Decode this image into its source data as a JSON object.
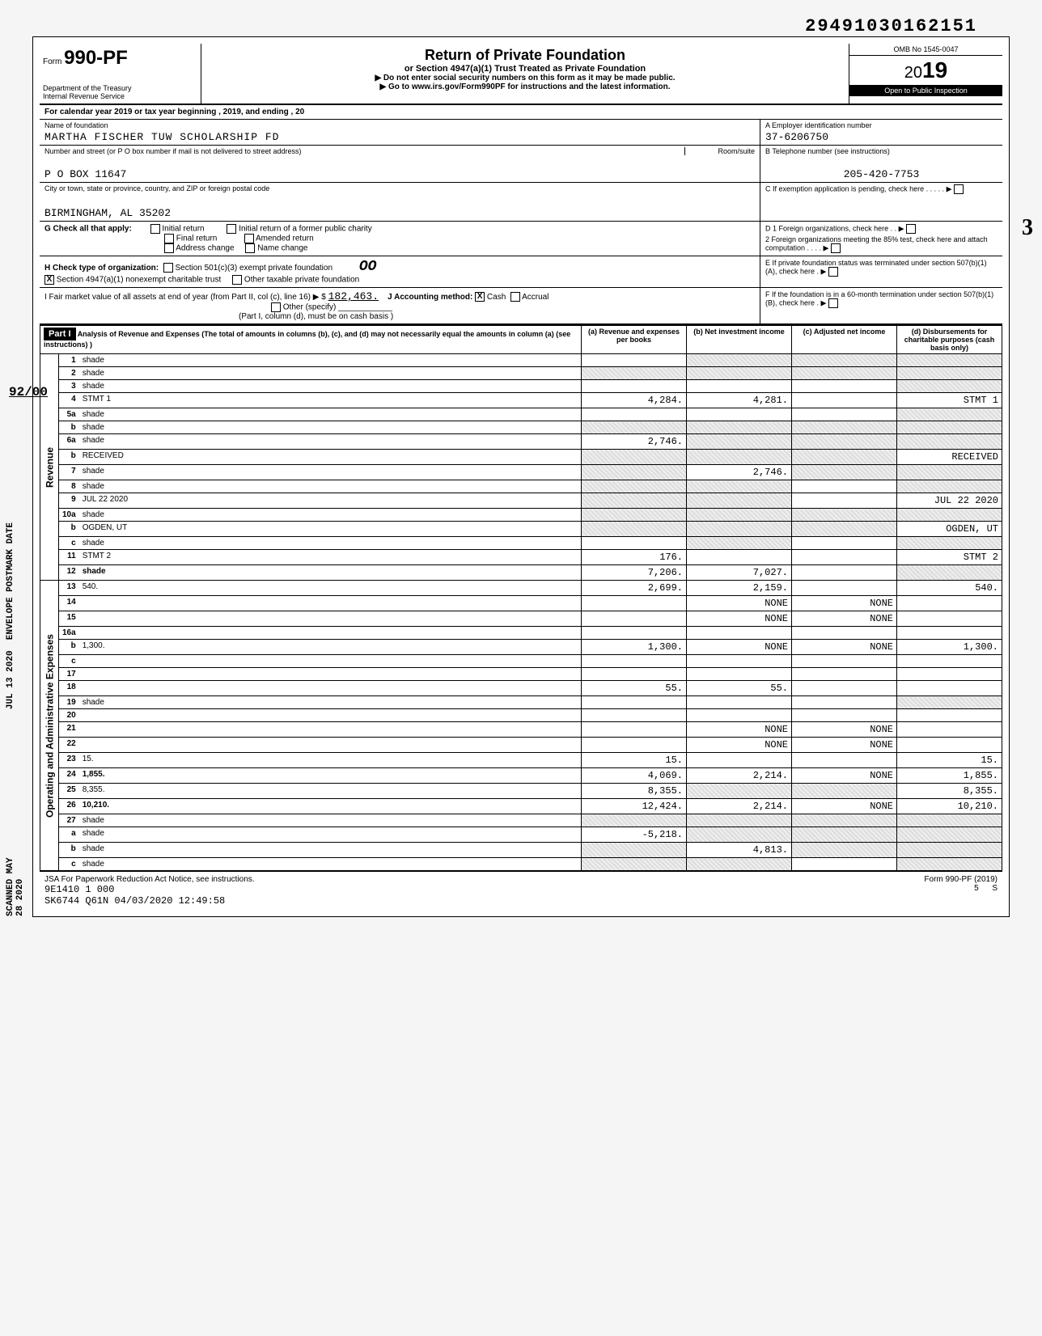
{
  "dln": "29491030162151",
  "form": {
    "prefix": "Form",
    "number": "990-PF"
  },
  "dept": "Department of the Treasury\nInternal Revenue Service",
  "title": "Return of Private Foundation",
  "subtitle": "or Section 4947(a)(1) Trust Treated as Private Foundation",
  "instr1": "▶ Do not enter social security numbers on this form as it may be made public.",
  "instr2": "▶ Go to www.irs.gov/Form990PF for instructions and the latest information.",
  "omb": "OMB No 1545-0047",
  "year_century": "20",
  "year_yy": "19",
  "open": "Open to Public Inspection",
  "cal_year": "For calendar year 2019 or tax year beginning                                          , 2019, and ending                                   , 20",
  "name_label": "Name of foundation",
  "name_val": "MARTHA FISCHER TUW SCHOLARSHIP FD",
  "ein_label": "A  Employer identification number",
  "ein_val": "37-6206750",
  "addr_label": "Number and street (or P O  box number if mail is not delivered to street address)",
  "room_label": "Room/suite",
  "addr_val": "P O BOX 11647",
  "phone_label": "B  Telephone number (see instructions)",
  "phone_val": "205-420-7753",
  "city_label": "City or town, state or province, country, and ZIP or foreign postal code",
  "city_val": "BIRMINGHAM, AL 35202",
  "c_label": "C  If exemption application is pending, check here",
  "g_label": "G  Check all that apply:",
  "g_opts": [
    "Initial return",
    "Final return",
    "Address change",
    "Initial return of a former public charity",
    "Amended return",
    "Name change"
  ],
  "d_label": "D  1 Foreign organizations, check here",
  "d2_label": "2 Foreign organizations meeting the 85% test, check here and attach computation",
  "h_label": "H  Check type of organization:",
  "h_opts": [
    "Section 501(c)(3) exempt private foundation",
    "Section 4947(a)(1) nonexempt charitable trust",
    "Other taxable private foundation"
  ],
  "h_checked": "X",
  "e_label": "E  If private foundation status was terminated under section 507(b)(1)(A), check here",
  "i_label": "I  Fair market value of all assets at end of year (from Part II, col (c), line 16) ▶ $",
  "i_val": "182,463.",
  "j_label": "J  Accounting method:",
  "j_opts": [
    "Cash",
    "Accrual",
    "Other (specify)"
  ],
  "j_checked": "X",
  "j_paren": "(Part I, column (d), must be on cash basis )",
  "f_label": "F  If the foundation is in a 60-month termination under section 507(b)(1)(B), check here",
  "part1": "Part I",
  "part1_title": "Analysis of Revenue and Expenses (The total of amounts in columns (b), (c), and (d) may not necessarily equal the amounts in column (a) (see instructions) )",
  "cols": {
    "a": "(a) Revenue and expenses per books",
    "b": "(b) Net investment income",
    "c": "(c) Adjusted net income",
    "d": "(d) Disbursements for charitable purposes (cash basis only)"
  },
  "side_labels": {
    "rev": "Revenue",
    "exp": "Operating and Administrative Expenses"
  },
  "lines": [
    {
      "n": "1",
      "d": "shade",
      "a": "",
      "b": "shade",
      "c": "shade"
    },
    {
      "n": "2",
      "d": "shade",
      "a": "shade",
      "b": "shade",
      "c": "shade"
    },
    {
      "n": "3",
      "d": "shade",
      "a": "",
      "b": "",
      "c": ""
    },
    {
      "n": "4",
      "d": "STMT 1",
      "a": "4,284.",
      "b": "4,281.",
      "c": ""
    },
    {
      "n": "5a",
      "d": "shade",
      "a": "",
      "b": "",
      "c": ""
    },
    {
      "n": "b",
      "d": "shade",
      "a": "shade",
      "b": "shade",
      "c": "shade"
    },
    {
      "n": "6a",
      "d": "shade",
      "a": "2,746.",
      "b": "shade",
      "c": "shade"
    },
    {
      "n": "b",
      "d": "RECEIVED",
      "a": "shade",
      "b": "shade",
      "c": "shade"
    },
    {
      "n": "7",
      "d": "shade",
      "a": "shade",
      "b": "2,746.",
      "c": "shade"
    },
    {
      "n": "8",
      "d": "shade",
      "a": "shade",
      "b": "shade",
      "c": ""
    },
    {
      "n": "9",
      "d": "JUL 22 2020",
      "a": "shade",
      "b": "shade",
      "c": ""
    },
    {
      "n": "10a",
      "d": "shade",
      "a": "shade",
      "b": "shade",
      "c": "shade"
    },
    {
      "n": "b",
      "d": "OGDEN, UT",
      "a": "shade",
      "b": "shade",
      "c": "shade"
    },
    {
      "n": "c",
      "d": "shade",
      "a": "",
      "b": "shade",
      "c": ""
    },
    {
      "n": "11",
      "d": "STMT 2",
      "a": "176.",
      "b": "",
      "c": ""
    },
    {
      "n": "12",
      "d": "shade",
      "a": "7,206.",
      "b": "7,027.",
      "c": ""
    },
    {
      "n": "13",
      "d": "540.",
      "a": "2,699.",
      "b": "2,159.",
      "c": ""
    },
    {
      "n": "14",
      "d": "",
      "a": "",
      "b": "NONE",
      "c": "NONE"
    },
    {
      "n": "15",
      "d": "",
      "a": "",
      "b": "NONE",
      "c": "NONE"
    },
    {
      "n": "16a",
      "d": "",
      "a": "",
      "b": "",
      "c": ""
    },
    {
      "n": "b",
      "d": "1,300.",
      "a": "1,300.",
      "b": "NONE",
      "c": "NONE"
    },
    {
      "n": "c",
      "d": "",
      "a": "",
      "b": "",
      "c": ""
    },
    {
      "n": "17",
      "d": "",
      "a": "",
      "b": "",
      "c": ""
    },
    {
      "n": "18",
      "d": "",
      "a": "55.",
      "b": "55.",
      "c": ""
    },
    {
      "n": "19",
      "d": "shade",
      "a": "",
      "b": "",
      "c": ""
    },
    {
      "n": "20",
      "d": "",
      "a": "",
      "b": "",
      "c": ""
    },
    {
      "n": "21",
      "d": "",
      "a": "",
      "b": "NONE",
      "c": "NONE"
    },
    {
      "n": "22",
      "d": "",
      "a": "",
      "b": "NONE",
      "c": "NONE"
    },
    {
      "n": "23",
      "d": "15.",
      "a": "15.",
      "b": "",
      "c": ""
    },
    {
      "n": "24",
      "d": "1,855.",
      "a": "4,069.",
      "b": "2,214.",
      "c": "NONE"
    },
    {
      "n": "25",
      "d": "8,355.",
      "a": "8,355.",
      "b": "shade",
      "c": "shade"
    },
    {
      "n": "26",
      "d": "10,210.",
      "a": "12,424.",
      "b": "2,214.",
      "c": "NONE"
    },
    {
      "n": "27",
      "d": "shade",
      "a": "shade",
      "b": "shade",
      "c": "shade"
    },
    {
      "n": "a",
      "d": "shade",
      "a": "-5,218.",
      "b": "shade",
      "c": "shade"
    },
    {
      "n": "b",
      "d": "shade",
      "a": "shade",
      "b": "4,813.",
      "c": "shade"
    },
    {
      "n": "c",
      "d": "shade",
      "a": "shade",
      "b": "shade",
      "c": ""
    }
  ],
  "footer": {
    "jsa": "JSA  For Paperwork Reduction Act Notice, see instructions.",
    "ident": "9E1410 1 000\nSK6744 Q61N 04/03/2020 12:49:58",
    "form": "Form 990-PF (2019)",
    "page": "5",
    "s": "S"
  },
  "margin": {
    "frac": "92/00",
    "date": "JUL 13 2020",
    "env": "ENVELOPE POSTMARK DATE",
    "scanned": "SCANNED MAY 28 2020",
    "three": "3"
  }
}
